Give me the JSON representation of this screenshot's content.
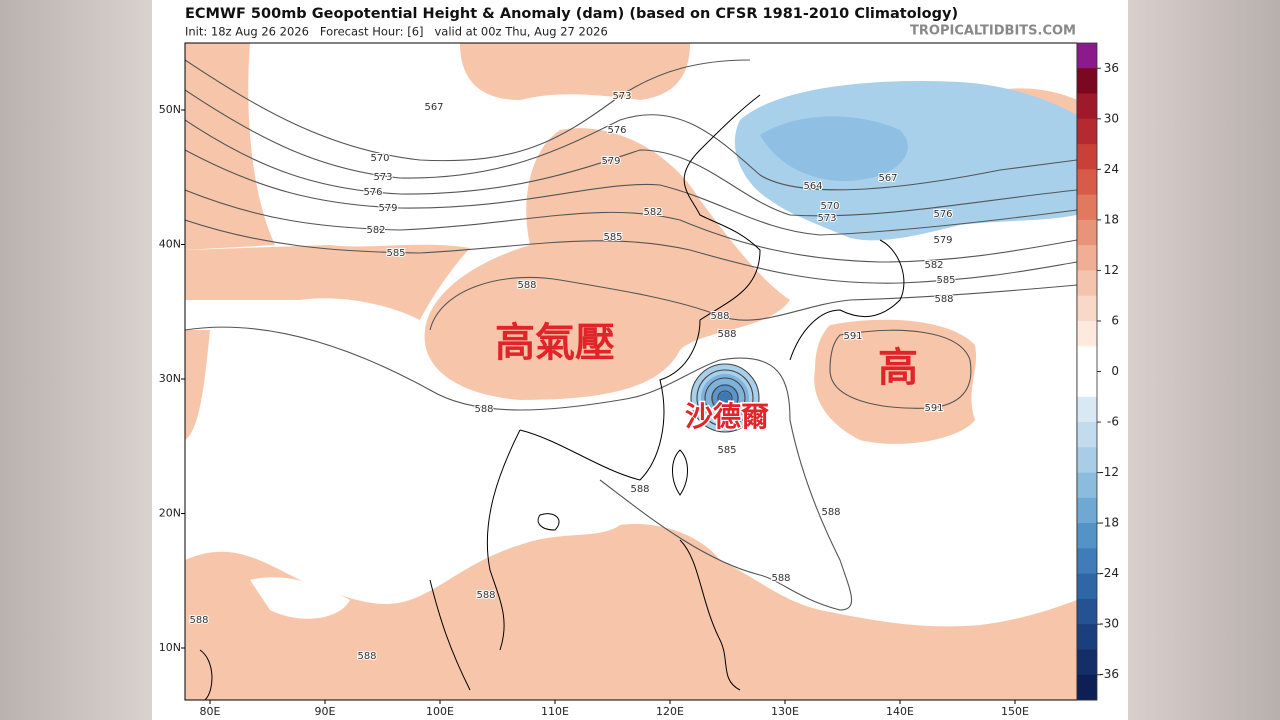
{
  "header": {
    "title": "ECMWF 500mb Geopotential Height & Anomaly (dam) (based on CFSR 1981-2010 Climatology)",
    "subtitle": "Init: 18z Aug 26 2026   Forecast Hour: [6]   valid at 00z Thu, Aug 27 2026",
    "watermark": "TROPICALTIDBITS.COM"
  },
  "map": {
    "lat_labels": [
      "50N",
      "40N",
      "30N",
      "20N",
      "10N"
    ],
    "lon_labels": [
      "80E",
      "90E",
      "100E",
      "110E",
      "120E",
      "130E",
      "140E",
      "150E"
    ],
    "contour_labels": [
      "567",
      "570",
      "573",
      "576",
      "579",
      "582",
      "585",
      "573",
      "576",
      "579",
      "582",
      "585",
      "588",
      "588",
      "588",
      "564",
      "567",
      "570",
      "573",
      "576",
      "579",
      "582",
      "585",
      "588",
      "591",
      "591",
      "588",
      "585",
      "588",
      "588",
      "588",
      "588",
      "588",
      "588"
    ],
    "annotations": [
      "高氣壓",
      "高",
      "沙德爾"
    ]
  },
  "colorbar": {
    "labels": [
      36,
      30,
      24,
      18,
      12,
      6,
      0,
      -6,
      -12,
      -18,
      -24,
      -30,
      -36
    ],
    "colors": [
      "#8b1a8b",
      "#7a0820",
      "#9e1a2a",
      "#b52a30",
      "#c84038",
      "#d85a48",
      "#e07a5f",
      "#e8947a",
      "#f0ae94",
      "#f5c4ac",
      "#fad8c8",
      "#fde9dd",
      "#ffffff",
      "#ffffff",
      "#d8e9f4",
      "#c2dcee",
      "#a8cde6",
      "#8bbcde",
      "#6fa8d3",
      "#5393c6",
      "#3f7cb8",
      "#2f66a6",
      "#245292",
      "#1b3f7d",
      "#142e68",
      "#0d1f55"
    ]
  }
}
